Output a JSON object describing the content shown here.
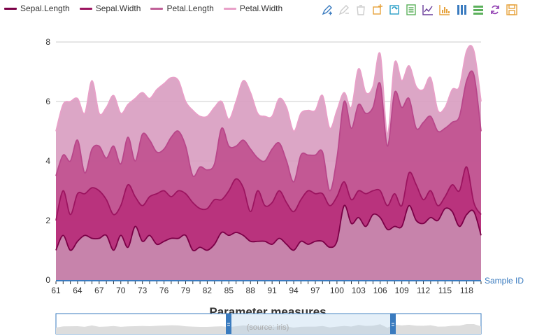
{
  "toolbox": {
    "icons": [
      {
        "name": "data-zoom-icon",
        "color": "#3a7bbf"
      },
      {
        "name": "data-zoom-reset-icon",
        "color": "#ccc"
      },
      {
        "name": "clear-mark-icon",
        "color": "#ccc"
      },
      {
        "name": "mark-line-icon",
        "color": "#e6a23c"
      },
      {
        "name": "restore-icon",
        "color": "#2aa0c8"
      },
      {
        "name": "data-view-icon",
        "color": "#5bb05b"
      },
      {
        "name": "line-chart-icon",
        "color": "#6a3d9a"
      },
      {
        "name": "bar-chart-icon",
        "color": "#e6a23c"
      },
      {
        "name": "stack-icon",
        "color": "#3a7bbf"
      },
      {
        "name": "tiled-icon",
        "color": "#5bb05b"
      },
      {
        "name": "refresh-icon",
        "color": "#8e3ab0"
      },
      {
        "name": "save-image-icon",
        "color": "#e6a23c"
      }
    ]
  },
  "chart_data": {
    "type": "area",
    "stacked": true,
    "title": "Parameter measures",
    "subtitle": "(source: iris)",
    "xlabel": "Sample ID",
    "ylabel": "",
    "x": [
      61,
      62,
      63,
      64,
      65,
      66,
      67,
      68,
      69,
      70,
      71,
      72,
      73,
      74,
      75,
      76,
      77,
      78,
      79,
      80,
      81,
      82,
      83,
      84,
      85,
      86,
      87,
      88,
      89,
      90,
      91,
      92,
      93,
      94,
      95,
      96,
      97,
      98,
      99,
      100,
      101,
      102,
      103,
      104,
      105,
      106,
      107,
      108,
      109,
      110,
      111,
      112,
      113,
      114,
      115,
      116,
      117,
      118,
      119,
      120
    ],
    "x_ticks": [
      61,
      64,
      67,
      70,
      73,
      76,
      79,
      82,
      85,
      88,
      91,
      94,
      97,
      100,
      103,
      106,
      109,
      112,
      115,
      118
    ],
    "ylim": [
      0,
      8
    ],
    "y_ticks": [
      0,
      2,
      4,
      6,
      8
    ],
    "grid": true,
    "legend_position": "top-left",
    "series": [
      {
        "name": "Sepal.Length",
        "color": "#7b0047",
        "fill": "#c98cb0",
        "values": [
          1.0,
          1.5,
          1.0,
          1.3,
          1.5,
          1.4,
          1.4,
          1.5,
          1.0,
          1.5,
          1.1,
          1.8,
          1.3,
          1.5,
          1.2,
          1.3,
          1.4,
          1.4,
          1.5,
          1.0,
          1.1,
          1.0,
          1.2,
          1.6,
          1.5,
          1.6,
          1.5,
          1.3,
          1.3,
          1.3,
          1.2,
          1.4,
          1.2,
          1.0,
          1.3,
          1.2,
          1.3,
          1.3,
          1.1,
          1.3,
          2.5,
          1.9,
          2.1,
          1.8,
          2.2,
          2.1,
          1.7,
          1.8,
          1.8,
          2.5,
          2.0,
          1.9,
          2.1,
          2.0,
          2.4,
          2.3,
          1.8,
          2.2,
          2.3,
          1.5
        ]
      },
      {
        "name": "Sepal.Width",
        "color": "#9c1460",
        "fill": "#b8307a",
        "values": [
          2.0,
          3.0,
          2.2,
          2.9,
          2.9,
          3.1,
          3.0,
          2.7,
          2.2,
          2.5,
          3.2,
          2.8,
          2.5,
          2.8,
          2.9,
          3.0,
          2.8,
          3.0,
          2.9,
          2.6,
          2.4,
          2.4,
          2.7,
          2.7,
          3.0,
          3.4,
          3.1,
          2.3,
          3.0,
          2.5,
          2.6,
          3.0,
          2.6,
          2.3,
          2.7,
          3.0,
          2.9,
          2.9,
          2.5,
          2.8,
          3.3,
          2.7,
          3.0,
          2.9,
          3.0,
          3.0,
          2.5,
          2.9,
          2.5,
          3.6,
          3.2,
          2.7,
          3.0,
          2.5,
          2.8,
          3.2,
          3.0,
          3.8,
          2.6,
          2.2
        ]
      },
      {
        "name": "Petal.Length",
        "color": "#b8468a",
        "fill": "#c0508e",
        "values": [
          3.5,
          4.2,
          4.0,
          4.7,
          3.6,
          4.4,
          4.5,
          4.1,
          4.5,
          3.9,
          4.8,
          4.0,
          4.9,
          4.7,
          4.3,
          4.4,
          4.8,
          5.0,
          4.5,
          3.5,
          3.8,
          3.7,
          3.9,
          5.1,
          4.5,
          4.5,
          4.7,
          4.4,
          4.1,
          4.0,
          4.4,
          4.6,
          4.0,
          3.3,
          4.2,
          4.2,
          4.2,
          4.3,
          3.0,
          4.1,
          6.0,
          5.1,
          5.9,
          5.6,
          5.8,
          6.6,
          4.5,
          6.3,
          5.8,
          6.1,
          5.1,
          5.3,
          5.5,
          5.0,
          5.1,
          5.3,
          5.5,
          6.7,
          6.9,
          5.0
        ]
      },
      {
        "name": "Petal.Width",
        "color": "#e8a0c8",
        "fill": "#d89cc0",
        "values": [
          5.0,
          5.9,
          6.0,
          6.1,
          5.6,
          6.7,
          5.6,
          5.8,
          6.2,
          5.6,
          5.9,
          6.1,
          6.3,
          6.1,
          6.4,
          6.6,
          6.8,
          6.7,
          6.0,
          5.7,
          5.5,
          5.5,
          5.8,
          6.0,
          5.4,
          6.0,
          6.7,
          6.3,
          5.6,
          5.5,
          5.5,
          6.1,
          5.8,
          5.0,
          5.6,
          5.7,
          5.7,
          6.2,
          5.1,
          5.7,
          6.3,
          5.8,
          7.1,
          6.3,
          6.5,
          7.6,
          4.9,
          7.3,
          6.7,
          7.2,
          6.5,
          6.4,
          6.8,
          5.7,
          5.8,
          6.4,
          6.5,
          7.7,
          7.7,
          6.0
        ]
      }
    ]
  }
}
